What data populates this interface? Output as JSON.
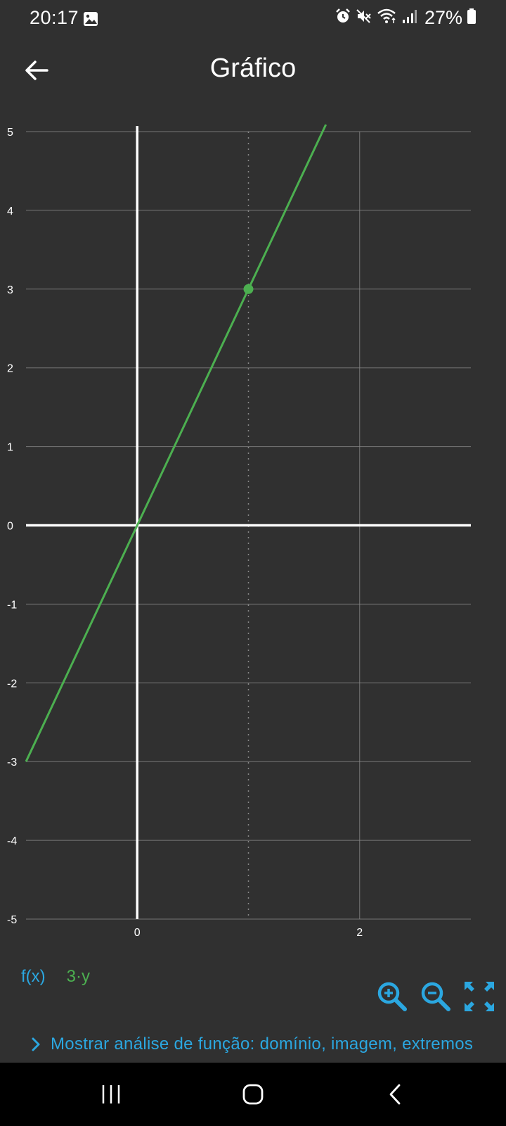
{
  "status_bar": {
    "time": "20:17",
    "battery_percent": "27%",
    "icons": [
      "image-icon",
      "alarm-icon",
      "mute-icon",
      "wifi-icon",
      "signal-icon",
      "battery-icon"
    ]
  },
  "app_bar": {
    "title": "Gráfico",
    "back_icon": "arrow-back-icon"
  },
  "legend": {
    "label": "f(x)",
    "series_name": "3·y"
  },
  "analysis": {
    "text": "Mostrar análise de função: domínio, imagem, extremos"
  },
  "zoom_controls": [
    "zoom-in-icon",
    "zoom-out-icon",
    "fit-screen-icon"
  ],
  "nav_bar": [
    "recent-apps-icon",
    "home-icon",
    "back-icon"
  ],
  "colors": {
    "background": "#303030",
    "accent": "#2ba7e0",
    "series": "#4caf50",
    "grid": "#888888",
    "axis": "#ffffff"
  },
  "chart_data": {
    "type": "line",
    "series": [
      {
        "name": "3·y",
        "slope": 3,
        "intercept": 0
      }
    ],
    "highlight_point": {
      "x": 1,
      "y": 3
    },
    "x_ticks": [
      "0",
      "2"
    ],
    "y_ticks": [
      "5",
      "4",
      "3",
      "2",
      "1",
      "0",
      "-1",
      "-2",
      "-3",
      "-4",
      "-5"
    ],
    "xlim": [
      -1,
      3
    ],
    "ylim": [
      -5,
      5
    ],
    "grid": true
  }
}
